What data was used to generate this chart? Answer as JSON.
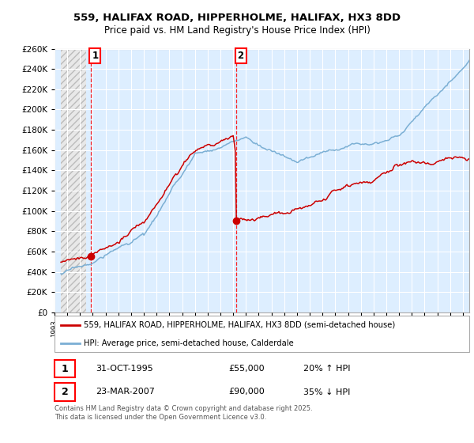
{
  "title_line1": "559, HALIFAX ROAD, HIPPERHOLME, HALIFAX, HX3 8DD",
  "title_line2": "Price paid vs. HM Land Registry's House Price Index (HPI)",
  "legend_line1": "559, HALIFAX ROAD, HIPPERHOLME, HALIFAX, HX3 8DD (semi-detached house)",
  "legend_line2": "HPI: Average price, semi-detached house, Calderdale",
  "footnote": "Contains HM Land Registry data © Crown copyright and database right 2025.\nThis data is licensed under the Open Government Licence v3.0.",
  "sale1_label": "1",
  "sale1_date": "31-OCT-1995",
  "sale1_price": "£55,000",
  "sale1_hpi": "20% ↑ HPI",
  "sale2_label": "2",
  "sale2_date": "23-MAR-2007",
  "sale2_price": "£90,000",
  "sale2_hpi": "35% ↓ HPI",
  "marker1_x": 1995.83,
  "marker1_y": 55000,
  "marker2_x": 2007.23,
  "marker2_y": 90000,
  "vline1_x": 1995.83,
  "vline2_x": 2007.23,
  "ylim": [
    0,
    260000
  ],
  "xlim": [
    1993.5,
    2025.5
  ],
  "property_color": "#cc0000",
  "hpi_color": "#7bafd4",
  "bg_color": "#ddeeff",
  "hatch_end_x": 1995.5
}
